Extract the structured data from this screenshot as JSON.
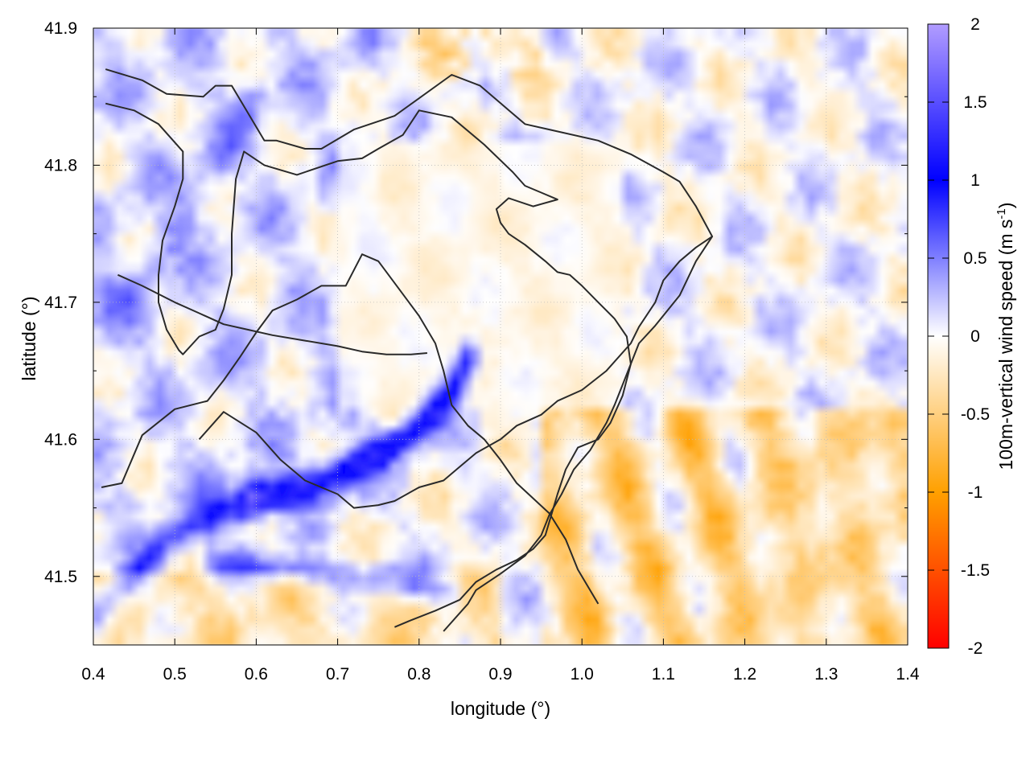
{
  "chart_data": {
    "type": "heatmap",
    "title": "",
    "xlabel": "longitude (°)",
    "ylabel": "latitude (°)",
    "colorbar_label": "100m-vertical wind speed (m s",
    "colorbar_label_sup": "-1",
    "colorbar_label_end": ")",
    "xlim": [
      0.4,
      1.4
    ],
    "ylim": [
      41.45,
      41.9
    ],
    "zlim": [
      -2,
      2
    ],
    "x_ticks": [
      0.4,
      0.5,
      0.6,
      0.7,
      0.8,
      0.9,
      1.0,
      1.1,
      1.2,
      1.3,
      1.4
    ],
    "x_tick_labels": [
      "0.4",
      "0.5",
      "0.6",
      "0.7",
      "0.8",
      "0.9",
      "1.0",
      "1.1",
      "1.2",
      "1.3",
      "1.4"
    ],
    "y_ticks": [
      41.5,
      41.6,
      41.7,
      41.8,
      41.9
    ],
    "y_tick_labels": [
      "41.5",
      "41.6",
      "41.7",
      "41.8",
      "41.9"
    ],
    "z_ticks": [
      -2,
      -1.5,
      -1,
      -0.5,
      0,
      0.5,
      1,
      1.5,
      2
    ],
    "z_tick_labels": [
      "-2",
      "-1.5",
      "-1",
      "-0.5",
      "0",
      "0.5",
      "1",
      "1.5",
      "2"
    ],
    "grid": true,
    "colormap": [
      {
        "v": -2,
        "color": "#ff0000"
      },
      {
        "v": -1,
        "color": "#ffa000"
      },
      {
        "v": 0,
        "color": "#ffffff"
      },
      {
        "v": 1,
        "color": "#0000ff"
      },
      {
        "v": 2,
        "color": "#b19cff"
      }
    ],
    "contours": [
      [
        [
          0.415,
          41.87
        ],
        [
          0.46,
          41.862
        ],
        [
          0.49,
          41.852
        ],
        [
          0.535,
          41.85
        ],
        [
          0.55,
          41.858
        ],
        [
          0.57,
          41.858
        ],
        [
          0.59,
          41.838
        ],
        [
          0.61,
          41.818
        ],
        [
          0.625,
          41.818
        ],
        [
          0.66,
          41.812
        ],
        [
          0.68,
          41.812
        ],
        [
          0.72,
          41.826
        ],
        [
          0.77,
          41.836
        ],
        [
          0.84,
          41.866
        ],
        [
          0.875,
          41.858
        ],
        [
          0.93,
          41.83
        ],
        [
          0.96,
          41.826
        ],
        [
          1.02,
          41.818
        ],
        [
          1.06,
          41.808
        ],
        [
          1.1,
          41.795
        ],
        [
          1.12,
          41.788
        ],
        [
          1.14,
          41.77
        ],
        [
          1.16,
          41.748
        ],
        [
          1.14,
          41.73
        ],
        [
          1.12,
          41.705
        ],
        [
          1.09,
          41.683
        ],
        [
          1.07,
          41.67
        ],
        [
          1.06,
          41.655
        ],
        [
          1.05,
          41.64
        ],
        [
          1.04,
          41.625
        ],
        [
          1.03,
          41.612
        ],
        [
          1.01,
          41.592
        ],
        [
          0.99,
          41.578
        ],
        [
          0.975,
          41.56
        ],
        [
          0.96,
          41.545
        ],
        [
          0.95,
          41.53
        ],
        [
          0.93,
          41.515
        ],
        [
          0.9,
          41.502
        ],
        [
          0.87,
          41.49
        ],
        [
          0.86,
          41.48
        ],
        [
          0.83,
          41.46
        ]
      ],
      [
        [
          0.415,
          41.845
        ],
        [
          0.45,
          41.84
        ],
        [
          0.48,
          41.83
        ],
        [
          0.51,
          41.81
        ],
        [
          0.51,
          41.79
        ],
        [
          0.5,
          41.77
        ],
        [
          0.485,
          41.745
        ],
        [
          0.48,
          41.72
        ],
        [
          0.48,
          41.7
        ],
        [
          0.49,
          41.68
        ],
        [
          0.505,
          41.665
        ],
        [
          0.51,
          41.662
        ],
        [
          0.53,
          41.675
        ],
        [
          0.55,
          41.68
        ],
        [
          0.56,
          41.695
        ],
        [
          0.57,
          41.72
        ],
        [
          0.57,
          41.75
        ],
        [
          0.575,
          41.79
        ],
        [
          0.585,
          41.81
        ],
        [
          0.61,
          41.8
        ],
        [
          0.65,
          41.793
        ],
        [
          0.7,
          41.803
        ],
        [
          0.73,
          41.805
        ],
        [
          0.75,
          41.812
        ],
        [
          0.78,
          41.822
        ],
        [
          0.8,
          41.84
        ],
        [
          0.84,
          41.835
        ],
        [
          0.88,
          41.815
        ],
        [
          0.915,
          41.795
        ],
        [
          0.93,
          41.785
        ],
        [
          0.95,
          41.78
        ],
        [
          0.97,
          41.775
        ],
        [
          0.94,
          41.77
        ],
        [
          0.91,
          41.776
        ],
        [
          0.895,
          41.768
        ],
        [
          0.9,
          41.758
        ],
        [
          0.91,
          41.75
        ],
        [
          0.93,
          41.742
        ],
        [
          0.955,
          41.73
        ],
        [
          0.97,
          41.722
        ],
        [
          0.985,
          41.72
        ],
        [
          1.0,
          41.712
        ],
        [
          1.02,
          41.7
        ],
        [
          1.04,
          41.688
        ],
        [
          1.055,
          41.675
        ],
        [
          1.06,
          41.655
        ],
        [
          1.05,
          41.632
        ],
        [
          1.035,
          41.612
        ],
        [
          1.02,
          41.6
        ],
        [
          0.995,
          41.594
        ],
        [
          0.98,
          41.578
        ],
        [
          0.97,
          41.56
        ],
        [
          0.955,
          41.53
        ],
        [
          0.94,
          41.52
        ],
        [
          0.92,
          41.512
        ],
        [
          0.895,
          41.505
        ],
        [
          0.87,
          41.496
        ],
        [
          0.85,
          41.483
        ],
        [
          0.82,
          41.475
        ],
        [
          0.79,
          41.468
        ],
        [
          0.77,
          41.463
        ]
      ],
      [
        [
          0.41,
          41.565
        ],
        [
          0.435,
          41.568
        ],
        [
          0.46,
          41.603
        ],
        [
          0.5,
          41.622
        ],
        [
          0.54,
          41.628
        ],
        [
          0.56,
          41.643
        ],
        [
          0.58,
          41.66
        ],
        [
          0.6,
          41.678
        ],
        [
          0.62,
          41.694
        ],
        [
          0.65,
          41.702
        ],
        [
          0.68,
          41.712
        ],
        [
          0.71,
          41.712
        ],
        [
          0.73,
          41.735
        ],
        [
          0.75,
          41.73
        ],
        [
          0.775,
          41.71
        ],
        [
          0.8,
          41.69
        ],
        [
          0.82,
          41.67
        ],
        [
          0.83,
          41.65
        ],
        [
          0.84,
          41.625
        ],
        [
          0.86,
          41.61
        ],
        [
          0.88,
          41.6
        ],
        [
          0.9,
          41.585
        ],
        [
          0.92,
          41.568
        ],
        [
          0.96,
          41.546
        ],
        [
          0.98,
          41.527
        ],
        [
          0.995,
          41.505
        ],
        [
          1.02,
          41.48
        ]
      ],
      [
        [
          0.53,
          41.6
        ],
        [
          0.56,
          41.62
        ],
        [
          0.6,
          41.605
        ],
        [
          0.63,
          41.585
        ],
        [
          0.66,
          41.57
        ],
        [
          0.7,
          41.56
        ],
        [
          0.72,
          41.55
        ],
        [
          0.75,
          41.552
        ],
        [
          0.77,
          41.555
        ],
        [
          0.8,
          41.565
        ],
        [
          0.83,
          41.57
        ],
        [
          0.85,
          41.58
        ],
        [
          0.87,
          41.59
        ],
        [
          0.9,
          41.6
        ],
        [
          0.92,
          41.61
        ],
        [
          0.95,
          41.618
        ],
        [
          0.97,
          41.628
        ],
        [
          1.0,
          41.636
        ],
        [
          1.03,
          41.65
        ],
        [
          1.06,
          41.67
        ],
        [
          1.07,
          41.682
        ],
        [
          1.09,
          41.7
        ],
        [
          1.1,
          41.716
        ],
        [
          1.12,
          41.73
        ],
        [
          1.14,
          41.74
        ],
        [
          1.16,
          41.748
        ]
      ],
      [
        [
          0.43,
          41.72
        ],
        [
          0.46,
          41.712
        ],
        [
          0.5,
          41.7
        ],
        [
          0.53,
          41.692
        ],
        [
          0.56,
          41.684
        ],
        [
          0.59,
          41.68
        ],
        [
          0.62,
          41.676
        ],
        [
          0.66,
          41.672
        ],
        [
          0.7,
          41.668
        ],
        [
          0.73,
          41.664
        ],
        [
          0.76,
          41.662
        ],
        [
          0.79,
          41.662
        ],
        [
          0.81,
          41.663
        ]
      ]
    ]
  }
}
